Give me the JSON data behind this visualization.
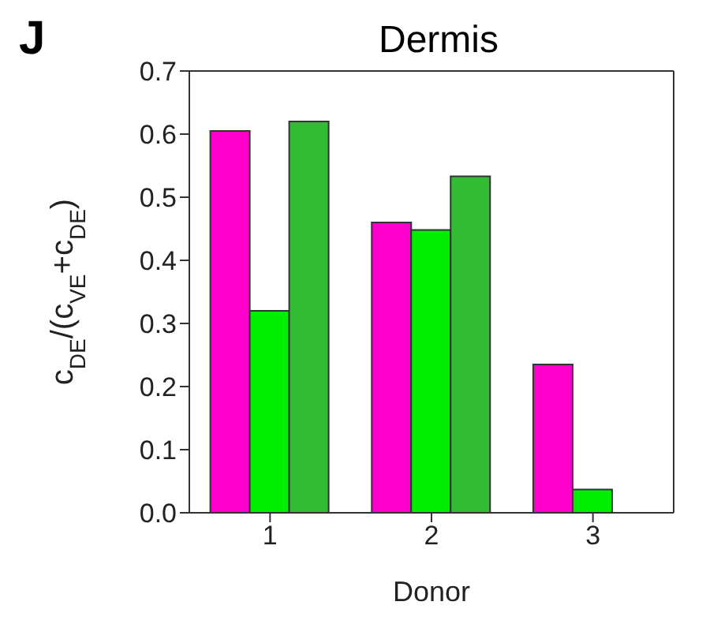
{
  "chart_data": {
    "type": "bar",
    "title": "Dermis",
    "annotations": [
      "J"
    ],
    "xlabel": "Donor",
    "ylabel": "c$_{DE}$/(c$_{VE}$+c$_{DE}$)",
    "categories": [
      "1",
      "2",
      "3"
    ],
    "series": [
      {
        "color": "#ff00cc",
        "values": [
          0.605,
          0.46,
          0.235
        ]
      },
      {
        "color": "#00ee00",
        "values": [
          0.32,
          0.448,
          0.037
        ]
      },
      {
        "color": "#33bb33",
        "values": [
          0.62,
          0.533,
          null
        ]
      }
    ],
    "ylim": [
      0,
      0.7
    ],
    "yticks": [
      {
        "value": 0,
        "label": "0.0"
      },
      0.1,
      0.2,
      0.3,
      0.4,
      0.5,
      0.6,
      0.7
    ],
    "grid": false,
    "legend": false
  }
}
